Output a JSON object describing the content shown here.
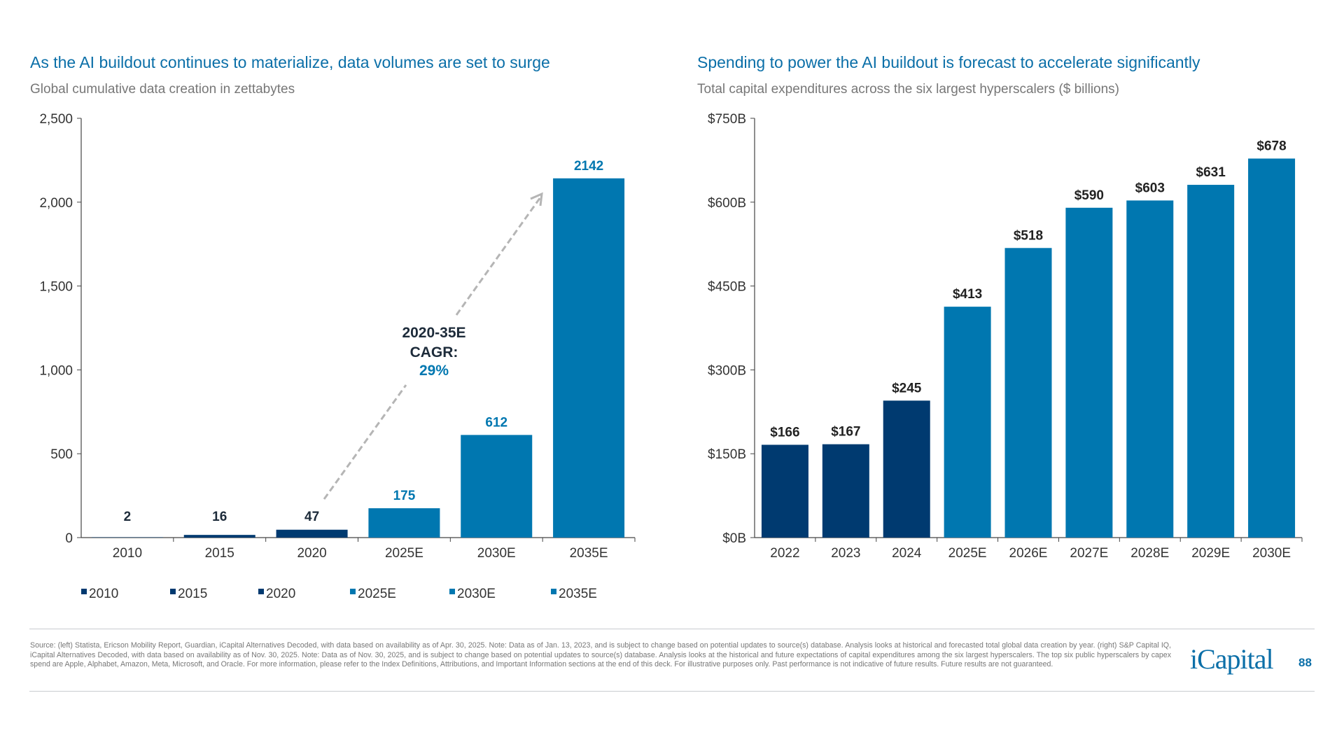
{
  "chart_data": [
    {
      "type": "bar",
      "title": "As the AI buildout continues to materialize, data volumes are set to surge",
      "subtitle": "Global cumulative data creation in zettabytes",
      "categories": [
        "2010",
        "2015",
        "2020",
        "2025E",
        "2030E",
        "2035E"
      ],
      "values": [
        2,
        16,
        47,
        175,
        612,
        2142
      ],
      "data_labels": [
        "2",
        "16",
        "47",
        "175",
        "612",
        "2142"
      ],
      "colors": [
        "#003a70",
        "#003a70",
        "#003a70",
        "#0077b0",
        "#0077b0",
        "#0077b0"
      ],
      "ylim": [
        0,
        2500
      ],
      "yticks": [
        "0",
        "500",
        "1,000",
        "1,500",
        "2,000",
        "2,500"
      ],
      "ytick_values": [
        0,
        500,
        1000,
        1500,
        2000,
        2500
      ],
      "legend": [
        "2010",
        "2015",
        "2020",
        "2025E",
        "2030E",
        "2035E"
      ],
      "legend_position": "bottom",
      "annotation": {
        "line1": "2020-35E",
        "line2": "CAGR:",
        "line3": "29%"
      },
      "grid": false
    },
    {
      "type": "bar",
      "title": "Spending to power the AI buildout is forecast to accelerate significantly",
      "subtitle": "Total capital expenditures across the six largest hyperscalers ($ billions)",
      "categories": [
        "2022",
        "2023",
        "2024",
        "2025E",
        "2026E",
        "2027E",
        "2028E",
        "2029E",
        "2030E"
      ],
      "values": [
        166,
        167,
        245,
        413,
        518,
        590,
        603,
        631,
        678
      ],
      "data_labels": [
        "$166",
        "$167",
        "$245",
        "$413",
        "$518",
        "$590",
        "$603",
        "$631",
        "$678"
      ],
      "colors": [
        "#003a70",
        "#003a70",
        "#003a70",
        "#0077b0",
        "#0077b0",
        "#0077b0",
        "#0077b0",
        "#0077b0",
        "#0077b0"
      ],
      "ylim": [
        0,
        750
      ],
      "yticks": [
        "$0B",
        "$150B",
        "$300B",
        "$450B",
        "$600B",
        "$750B"
      ],
      "ytick_values": [
        0,
        150,
        300,
        450,
        600,
        750
      ],
      "grid": false
    }
  ],
  "footer": {
    "source": "Source: (left) Statista, Ericson Mobility Report, Guardian, iCapital Alternatives Decoded, with data based on availability as of Apr. 30, 2025. Note: Data as of Jan. 13, 2023, and is subject to change based on potential updates to source(s) database. Analysis looks at historical and forecasted total global data creation by year. (right) S&P Capital IQ, iCapital Alternatives Decoded, with data based on availability as of Nov. 30, 2025. Note: Data as of Nov. 30, 2025, and is subject to change based on potential updates to source(s) database. Analysis looks at the historical and future expectations of capital expenditures among the six largest hyperscalers. The top six public hyperscalers by capex spend are Apple, Alphabet, Amazon, Meta, Microsoft, and Oracle. For more information, please refer to the Index Definitions, Attributions, and Important Information sections at the end of this deck. For illustrative purposes only. Past performance is not indicative of future results. Future results are not guaranteed.",
    "logo": "iCapital",
    "page": "88"
  }
}
